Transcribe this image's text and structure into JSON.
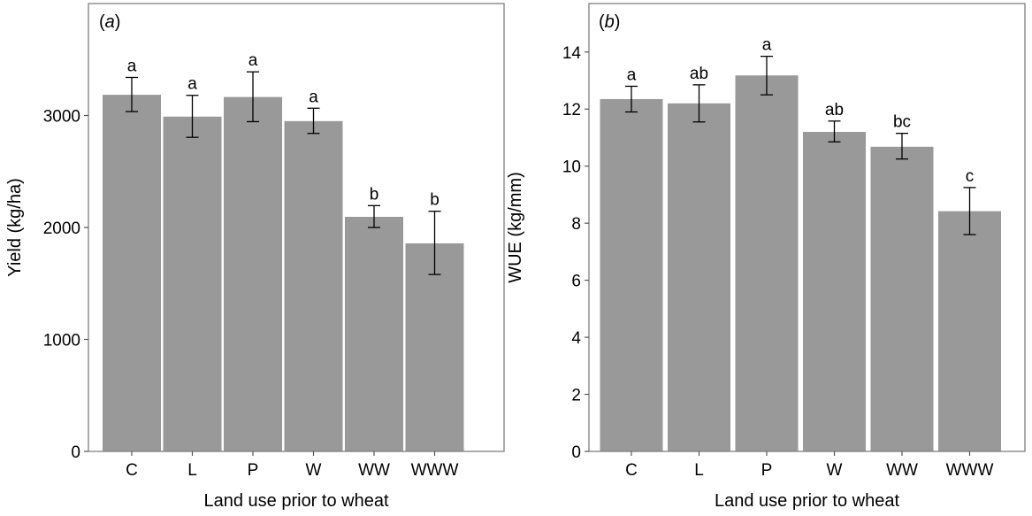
{
  "chart_data": [
    {
      "type": "bar",
      "panel_label": "a",
      "categories": [
        "C",
        "L",
        "P",
        "W",
        "WW",
        "WWW"
      ],
      "values": [
        3185,
        2990,
        3165,
        2950,
        2095,
        1858
      ],
      "errors": [
        [
          3035,
          3340
        ],
        [
          2805,
          3180
        ],
        [
          2945,
          3390
        ],
        [
          2840,
          3065
        ],
        [
          2000,
          2195
        ],
        [
          1580,
          2145
        ]
      ],
      "significance": [
        "a",
        "a",
        "a",
        "a",
        "b",
        "b"
      ],
      "xlabel": "Land use prior to wheat",
      "ylabel": "Yield (kg/ha)",
      "ylim": [
        0,
        4000
      ],
      "yticks": [
        0,
        1000,
        2000,
        3000
      ],
      "bar_color": "#999999",
      "grid": false
    },
    {
      "type": "bar",
      "panel_label": "b",
      "categories": [
        "C",
        "L",
        "P",
        "W",
        "WW",
        "WWW"
      ],
      "values": [
        12.35,
        12.2,
        13.18,
        11.2,
        10.68,
        8.42
      ],
      "errors": [
        [
          11.9,
          12.8
        ],
        [
          11.55,
          12.85
        ],
        [
          12.5,
          13.85
        ],
        [
          10.85,
          11.58
        ],
        [
          10.25,
          11.15
        ],
        [
          7.6,
          9.25
        ]
      ],
      "significance": [
        "a",
        "ab",
        "a",
        "ab",
        "bc",
        "c"
      ],
      "xlabel": "Land use prior to wheat",
      "ylabel": "WUE (kg/mm)",
      "ylim": [
        0,
        15.7
      ],
      "yticks": [
        0,
        2,
        4,
        6,
        8,
        10,
        12,
        14
      ],
      "bar_color": "#999999",
      "grid": false
    }
  ]
}
